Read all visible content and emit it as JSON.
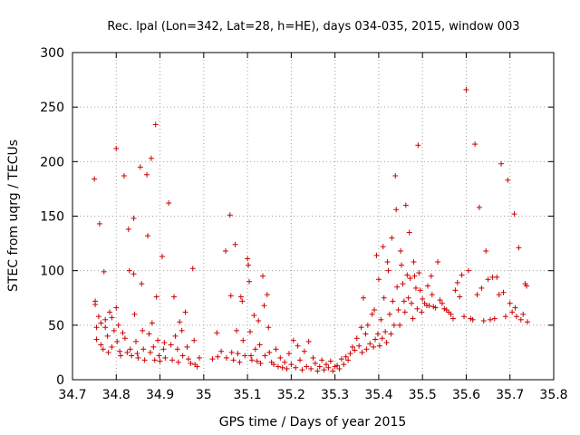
{
  "chart_data": {
    "type": "scatter",
    "title": "Rec. lpal (Lon=342, Lat=28, h=HE), days 034-035, 2015, window 003",
    "xlabel": "GPS time / Days of year 2015",
    "ylabel": "STEC from uqrg / TECUs",
    "xlim": [
      34.7,
      35.8
    ],
    "ylim": [
      0,
      300
    ],
    "x_ticks": [
      "34.7",
      "34.8",
      "34.9",
      "35",
      "35.1",
      "35.2",
      "35.3",
      "35.4",
      "35.5",
      "35.6",
      "35.7",
      "35.8"
    ],
    "y_ticks": [
      "0",
      "50",
      "100",
      "150",
      "200",
      "250",
      "300"
    ],
    "grid": true,
    "legend": "none",
    "marker": "plus",
    "color": "#cc0000",
    "series": [
      {
        "points": [
          [
            34.75,
            184
          ],
          [
            34.752,
            72
          ],
          [
            34.752,
            69
          ],
          [
            34.755,
            48
          ],
          [
            34.755,
            37
          ],
          [
            34.76,
            58
          ],
          [
            34.762,
            143
          ],
          [
            34.765,
            52
          ],
          [
            34.765,
            32
          ],
          [
            34.77,
            28
          ],
          [
            34.772,
            99
          ],
          [
            34.775,
            55
          ],
          [
            34.775,
            48
          ],
          [
            34.78,
            40
          ],
          [
            34.782,
            25
          ],
          [
            34.785,
            62
          ],
          [
            34.79,
            57
          ],
          [
            34.79,
            30
          ],
          [
            34.795,
            45
          ],
          [
            34.8,
            212
          ],
          [
            34.8,
            66
          ],
          [
            34.802,
            35
          ],
          [
            34.805,
            50
          ],
          [
            34.808,
            26
          ],
          [
            34.81,
            22
          ],
          [
            34.815,
            43
          ],
          [
            34.818,
            187
          ],
          [
            34.82,
            38
          ],
          [
            34.825,
            25
          ],
          [
            34.828,
            138
          ],
          [
            34.83,
            100
          ],
          [
            34.832,
            28
          ],
          [
            34.835,
            22
          ],
          [
            34.84,
            148
          ],
          [
            34.84,
            97
          ],
          [
            34.842,
            60
          ],
          [
            34.845,
            35
          ],
          [
            34.848,
            24
          ],
          [
            34.85,
            20
          ],
          [
            34.855,
            195
          ],
          [
            34.858,
            88
          ],
          [
            34.86,
            45
          ],
          [
            34.862,
            28
          ],
          [
            34.865,
            18
          ],
          [
            34.87,
            188
          ],
          [
            34.872,
            132
          ],
          [
            34.875,
            42
          ],
          [
            34.878,
            25
          ],
          [
            34.88,
            203
          ],
          [
            34.882,
            52
          ],
          [
            34.885,
            30
          ],
          [
            34.888,
            18
          ],
          [
            34.89,
            234
          ],
          [
            34.892,
            76
          ],
          [
            34.895,
            36
          ],
          [
            34.898,
            22
          ],
          [
            34.9,
            17
          ],
          [
            34.905,
            113
          ],
          [
            34.908,
            28
          ],
          [
            34.91,
            34
          ],
          [
            34.912,
            20
          ],
          [
            34.92,
            162
          ],
          [
            34.925,
            32
          ],
          [
            34.928,
            18
          ],
          [
            34.932,
            76
          ],
          [
            34.935,
            40
          ],
          [
            34.94,
            28
          ],
          [
            34.942,
            16
          ],
          [
            34.945,
            53
          ],
          [
            34.95,
            45
          ],
          [
            34.952,
            22
          ],
          [
            34.958,
            62
          ],
          [
            34.962,
            30
          ],
          [
            34.965,
            19
          ],
          [
            34.97,
            15
          ],
          [
            34.975,
            102
          ],
          [
            34.978,
            36
          ],
          [
            34.98,
            14
          ],
          [
            34.985,
            12
          ],
          [
            34.99,
            20
          ],
          [
            35.02,
            19
          ],
          [
            35.03,
            43
          ],
          [
            35.032,
            21
          ],
          [
            35.04,
            26
          ],
          [
            35.05,
            118
          ],
          [
            35.052,
            20
          ],
          [
            35.06,
            151
          ],
          [
            35.062,
            77
          ],
          [
            35.064,
            25
          ],
          [
            35.068,
            18
          ],
          [
            35.072,
            124
          ],
          [
            35.075,
            45
          ],
          [
            35.078,
            24
          ],
          [
            35.082,
            16
          ],
          [
            35.085,
            76
          ],
          [
            35.088,
            72
          ],
          [
            35.09,
            36
          ],
          [
            35.094,
            22
          ],
          [
            35.1,
            111
          ],
          [
            35.102,
            105
          ],
          [
            35.104,
            90
          ],
          [
            35.106,
            44
          ],
          [
            35.108,
            22
          ],
          [
            35.11,
            18
          ],
          [
            35.115,
            59
          ],
          [
            35.118,
            28
          ],
          [
            35.122,
            17
          ],
          [
            35.125,
            54
          ],
          [
            35.128,
            32
          ],
          [
            35.13,
            15
          ],
          [
            35.135,
            95
          ],
          [
            35.138,
            68
          ],
          [
            35.14,
            22
          ],
          [
            35.145,
            78
          ],
          [
            35.148,
            48
          ],
          [
            35.15,
            25
          ],
          [
            35.155,
            16
          ],
          [
            35.16,
            14
          ],
          [
            35.165,
            28
          ],
          [
            35.17,
            12
          ],
          [
            35.175,
            20
          ],
          [
            35.18,
            11
          ],
          [
            35.185,
            16
          ],
          [
            35.19,
            10
          ],
          [
            35.195,
            24
          ],
          [
            35.2,
            14
          ],
          [
            35.205,
            36
          ],
          [
            35.21,
            11
          ],
          [
            35.215,
            31
          ],
          [
            35.22,
            18
          ],
          [
            35.225,
            9
          ],
          [
            35.23,
            26
          ],
          [
            35.235,
            12
          ],
          [
            35.24,
            35
          ],
          [
            35.245,
            10
          ],
          [
            35.25,
            20
          ],
          [
            35.255,
            15
          ],
          [
            35.26,
            8
          ],
          [
            35.265,
            12
          ],
          [
            35.27,
            18
          ],
          [
            35.275,
            9
          ],
          [
            35.28,
            14
          ],
          [
            35.285,
            11
          ],
          [
            35.29,
            17
          ],
          [
            35.295,
            8
          ],
          [
            35.3,
            12
          ],
          [
            35.305,
            13
          ],
          [
            35.31,
            10
          ],
          [
            35.315,
            19
          ],
          [
            35.32,
            14
          ],
          [
            35.325,
            21
          ],
          [
            35.33,
            18
          ],
          [
            35.335,
            24
          ],
          [
            35.34,
            30
          ],
          [
            35.345,
            27
          ],
          [
            35.35,
            38
          ],
          [
            35.355,
            31
          ],
          [
            35.36,
            48
          ],
          [
            35.362,
            25
          ],
          [
            35.365,
            75
          ],
          [
            35.37,
            42
          ],
          [
            35.372,
            28
          ],
          [
            35.375,
            50
          ],
          [
            35.38,
            33
          ],
          [
            35.385,
            60
          ],
          [
            35.388,
            30
          ],
          [
            35.39,
            64
          ],
          [
            35.392,
            37
          ],
          [
            35.395,
            114
          ],
          [
            35.398,
            42
          ],
          [
            35.4,
            92
          ],
          [
            35.402,
            31
          ],
          [
            35.405,
            55
          ],
          [
            35.408,
            38
          ],
          [
            35.41,
            122
          ],
          [
            35.412,
            75
          ],
          [
            35.415,
            44
          ],
          [
            35.418,
            34
          ],
          [
            35.42,
            108
          ],
          [
            35.422,
            100
          ],
          [
            35.425,
            60
          ],
          [
            35.428,
            42
          ],
          [
            35.43,
            130
          ],
          [
            35.432,
            72
          ],
          [
            35.435,
            50
          ],
          [
            35.438,
            187
          ],
          [
            35.44,
            156
          ],
          [
            35.442,
            85
          ],
          [
            35.445,
            64
          ],
          [
            35.448,
            50
          ],
          [
            35.45,
            118
          ],
          [
            35.452,
            105
          ],
          [
            35.455,
            88
          ],
          [
            35.458,
            72
          ],
          [
            35.46,
            62
          ],
          [
            35.462,
            160
          ],
          [
            35.465,
            96
          ],
          [
            35.468,
            75
          ],
          [
            35.47,
            135
          ],
          [
            35.472,
            93
          ],
          [
            35.475,
            70
          ],
          [
            35.478,
            56
          ],
          [
            35.48,
            108
          ],
          [
            35.482,
            95
          ],
          [
            35.485,
            84
          ],
          [
            35.488,
            65
          ],
          [
            35.49,
            215
          ],
          [
            35.492,
            98
          ],
          [
            35.495,
            82
          ],
          [
            35.498,
            62
          ],
          [
            35.5,
            74
          ],
          [
            35.505,
            70
          ],
          [
            35.51,
            68
          ],
          [
            35.512,
            86
          ],
          [
            35.515,
            68
          ],
          [
            35.52,
            95
          ],
          [
            35.522,
            78
          ],
          [
            35.525,
            67
          ],
          [
            35.53,
            66
          ],
          [
            35.535,
            108
          ],
          [
            35.54,
            73
          ],
          [
            35.545,
            70
          ],
          [
            35.55,
            65
          ],
          [
            35.555,
            64
          ],
          [
            35.56,
            62
          ],
          [
            35.565,
            60
          ],
          [
            35.57,
            56
          ],
          [
            35.575,
            82
          ],
          [
            35.58,
            89
          ],
          [
            35.585,
            76
          ],
          [
            35.59,
            96
          ],
          [
            35.595,
            58
          ],
          [
            35.6,
            266
          ],
          [
            35.605,
            100
          ],
          [
            35.61,
            56
          ],
          [
            35.615,
            55
          ],
          [
            35.62,
            216
          ],
          [
            35.625,
            78
          ],
          [
            35.63,
            158
          ],
          [
            35.635,
            84
          ],
          [
            35.64,
            54
          ],
          [
            35.645,
            118
          ],
          [
            35.65,
            92
          ],
          [
            35.655,
            55
          ],
          [
            35.66,
            94
          ],
          [
            35.665,
            56
          ],
          [
            35.67,
            94
          ],
          [
            35.675,
            78
          ],
          [
            35.68,
            198
          ],
          [
            35.685,
            80
          ],
          [
            35.69,
            58
          ],
          [
            35.695,
            183
          ],
          [
            35.7,
            70
          ],
          [
            35.705,
            62
          ],
          [
            35.71,
            152
          ],
          [
            35.712,
            66
          ],
          [
            35.715,
            58
          ],
          [
            35.72,
            121
          ],
          [
            35.725,
            55
          ],
          [
            35.73,
            60
          ],
          [
            35.735,
            88
          ],
          [
            35.738,
            86
          ],
          [
            35.74,
            53
          ]
        ]
      }
    ]
  }
}
